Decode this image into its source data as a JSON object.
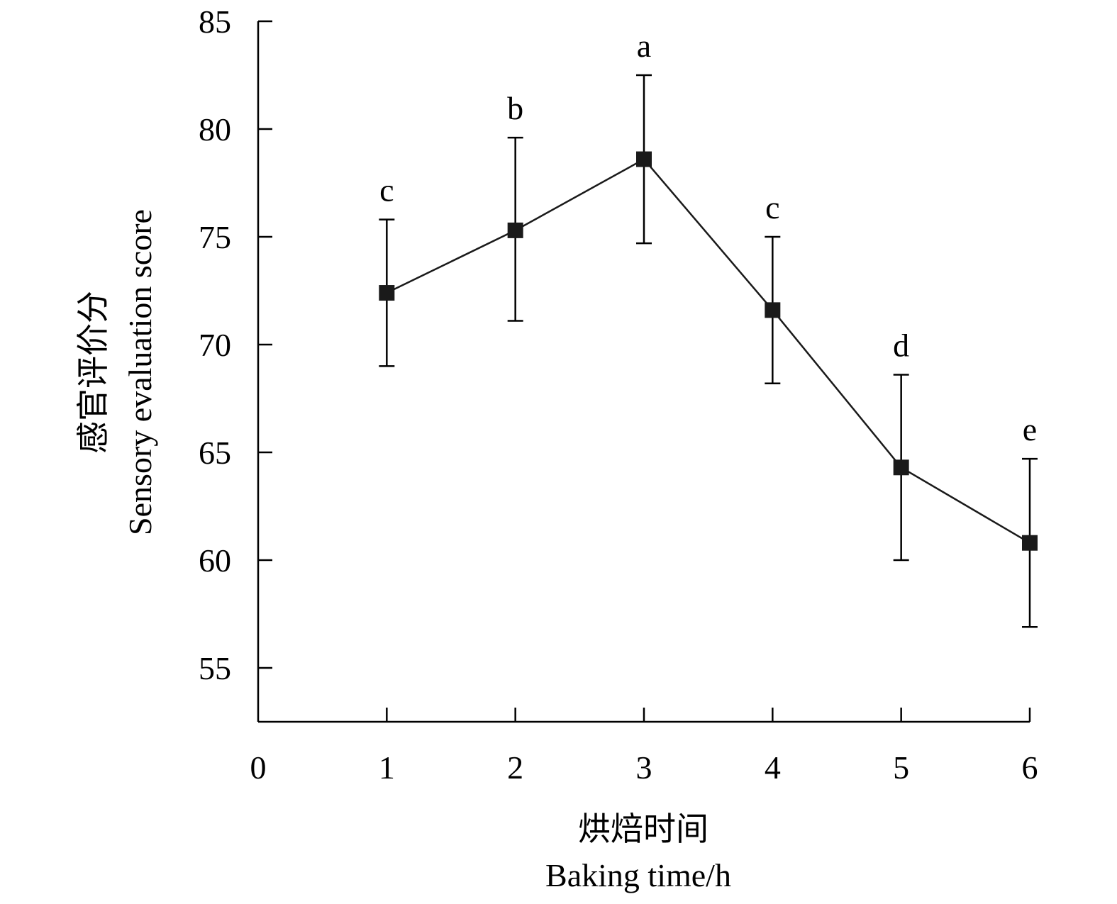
{
  "chart_data": {
    "type": "line",
    "title": "",
    "xlabel_cn": "烘焙时间",
    "xlabel": "Baking time/h",
    "ylabel_cn": "感官评价分",
    "ylabel": "Sensory evaluation score",
    "xlim": [
      0,
      6
    ],
    "ylim": [
      52.5,
      85
    ],
    "x_ticks": [
      0,
      1,
      2,
      3,
      4,
      5,
      6
    ],
    "y_ticks": [
      55,
      60,
      65,
      70,
      75,
      80,
      85
    ],
    "grid": false,
    "marker": "square",
    "series": [
      {
        "name": "Sensory evaluation score",
        "x": [
          1,
          2,
          3,
          4,
          5,
          6
        ],
        "y": [
          72.4,
          75.3,
          78.6,
          71.6,
          64.3,
          60.8
        ],
        "error_upper": [
          75.8,
          79.6,
          82.5,
          75.0,
          68.6,
          64.7
        ],
        "error_lower": [
          69.0,
          71.1,
          74.7,
          68.2,
          60.0,
          56.9
        ],
        "significance": [
          "c",
          "b",
          "a",
          "c",
          "d",
          "e"
        ]
      }
    ]
  }
}
